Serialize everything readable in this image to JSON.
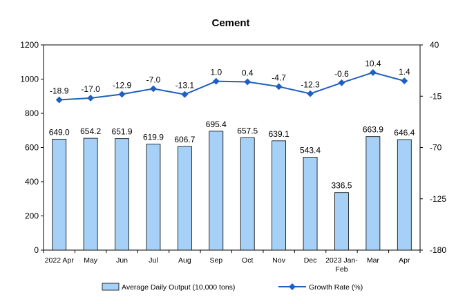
{
  "chart_data": {
    "type": "bar+line",
    "title": "Cement",
    "categories": [
      [
        "2022 Apr"
      ],
      [
        "May"
      ],
      [
        "Jun"
      ],
      [
        "Jul"
      ],
      [
        "Aug"
      ],
      [
        "Sep"
      ],
      [
        "Oct"
      ],
      [
        "Nov"
      ],
      [
        "Dec"
      ],
      [
        "2023 Jan-",
        "Feb"
      ],
      [
        "Mar"
      ],
      [
        "Apr"
      ]
    ],
    "series": [
      {
        "name": "Average Daily Output (10,000 tons)",
        "type": "bar",
        "axis": "left",
        "color": "#a6d0f5",
        "values": [
          649.0,
          654.2,
          651.9,
          619.9,
          606.7,
          695.4,
          657.5,
          639.1,
          543.4,
          336.5,
          663.9,
          646.4
        ],
        "labels": [
          "649.0",
          "654.2",
          "651.9",
          "619.9",
          "606.7",
          "695.4",
          "657.5",
          "639.1",
          "543.4",
          "336.5",
          "663.9",
          "646.4"
        ]
      },
      {
        "name": "Growth Rate (%)",
        "type": "line",
        "axis": "right",
        "color": "#1f5fbf",
        "values": [
          -18.9,
          -17.0,
          -12.9,
          -7.0,
          -13.1,
          1.0,
          0.4,
          -4.7,
          -12.3,
          -0.6,
          10.4,
          1.4
        ],
        "labels": [
          "-18.9",
          "-17.0",
          "-12.9",
          "-7.0",
          "-13.1",
          "1.0",
          "0.4",
          "-4.7",
          "-12.3",
          "-0.6",
          "10.4",
          "1.4"
        ]
      }
    ],
    "y_left": {
      "min": 0,
      "max": 1200,
      "ticks": [
        "0",
        "200",
        "400",
        "600",
        "800",
        "1000",
        "1200"
      ]
    },
    "y_right": {
      "min": -180,
      "max": 40,
      "ticks": [
        "-180",
        "-125",
        "-70",
        "-15",
        "40"
      ]
    },
    "grid": false,
    "legend_position": "bottom"
  }
}
